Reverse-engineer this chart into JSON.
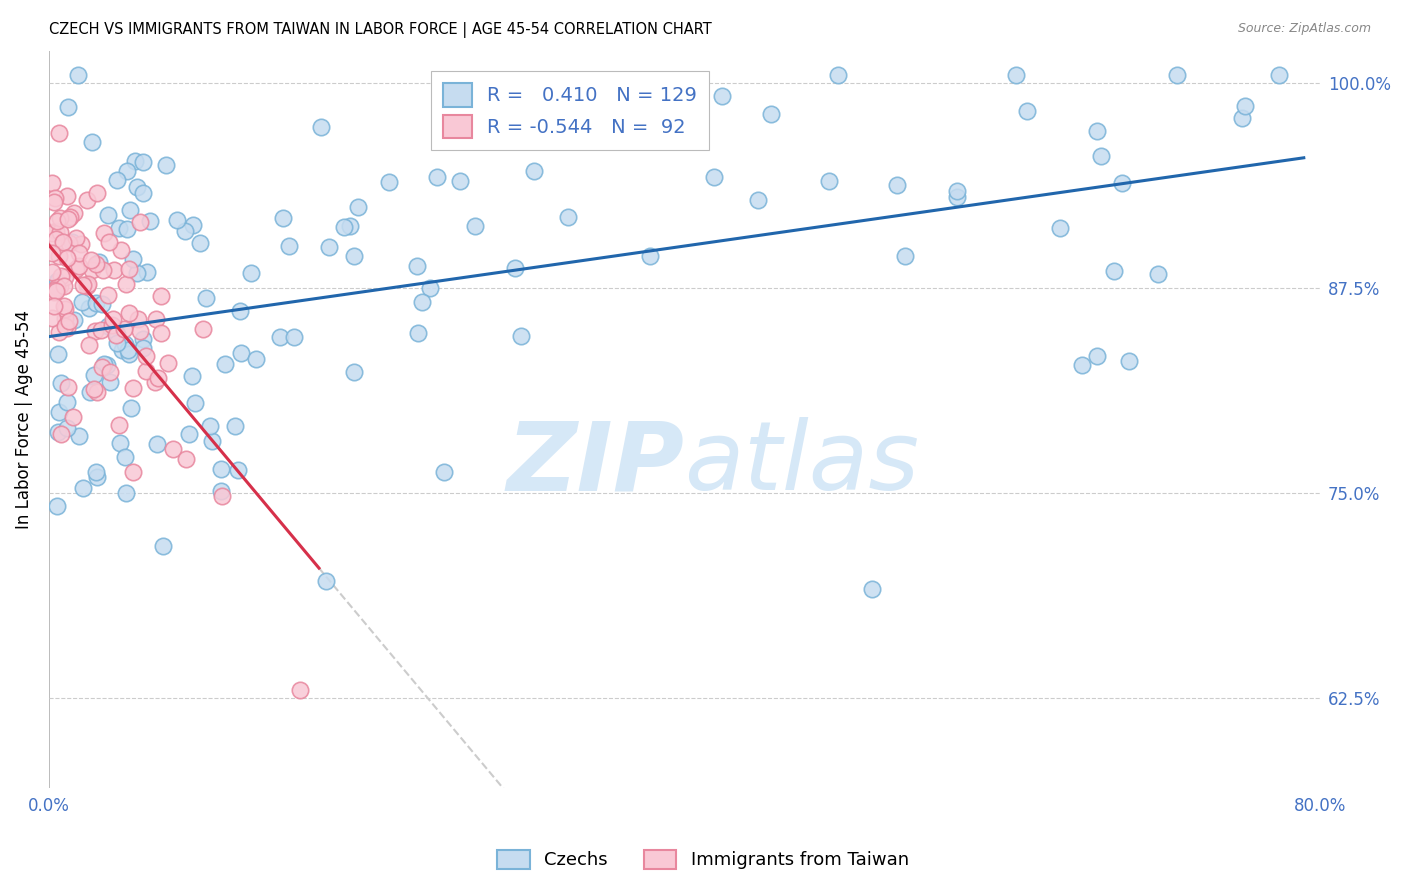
{
  "title": "CZECH VS IMMIGRANTS FROM TAIWAN IN LABOR FORCE | AGE 45-54 CORRELATION CHART",
  "source": "Source: ZipAtlas.com",
  "ylabel": "In Labor Force | Age 45-54",
  "xlim": [
    0.0,
    0.8
  ],
  "ylim": [
    0.57,
    1.02
  ],
  "xticks": [
    0.0,
    0.1,
    0.2,
    0.3,
    0.4,
    0.5,
    0.6,
    0.7,
    0.8
  ],
  "xticklabels": [
    "0.0%",
    "",
    "",
    "",
    "",
    "",
    "",
    "",
    "80.0%"
  ],
  "yticks": [
    0.625,
    0.75,
    0.875,
    1.0
  ],
  "yticklabels": [
    "62.5%",
    "75.0%",
    "87.5%",
    "100.0%"
  ],
  "R_czech": 0.41,
  "N_czech": 129,
  "R_taiwan": -0.544,
  "N_taiwan": 92,
  "legend_labels": [
    "Czechs",
    "Immigrants from Taiwan"
  ],
  "blue_marker_face": "#c6dcf0",
  "blue_marker_edge": "#7ab3d8",
  "pink_marker_face": "#f9c8d5",
  "pink_marker_edge": "#e8879e",
  "trend_blue": "#2166ac",
  "trend_pink": "#d6304a",
  "trend_dashed": "#cccccc",
  "watermark_color": "#d6e8f7",
  "axis_color": "#4472C4",
  "grid_color": "#cccccc"
}
